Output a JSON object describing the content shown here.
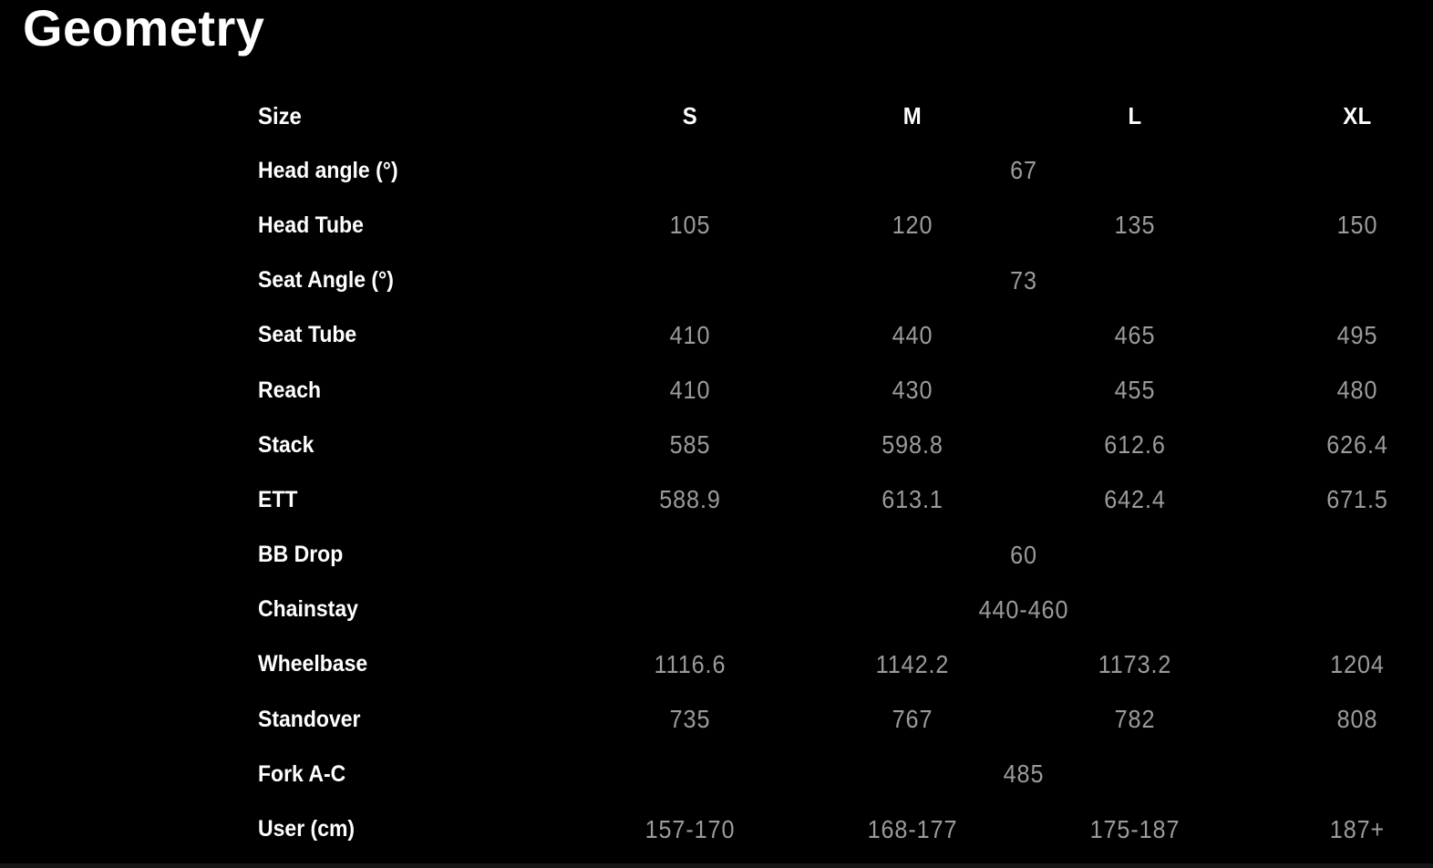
{
  "page": {
    "title": "Geometry"
  },
  "colors": {
    "background": "#000000",
    "label_color": "#ffffff",
    "value_color": "#9b9b9b"
  },
  "table": {
    "header": {
      "label": "Size",
      "columns": [
        "S",
        "M",
        "L",
        "XL"
      ]
    },
    "rows": [
      {
        "label": "Head angle (°)",
        "span": true,
        "value": "67"
      },
      {
        "label": "Head Tube",
        "span": false,
        "values": [
          "105",
          "120",
          "135",
          "150"
        ]
      },
      {
        "label": "Seat Angle (°)",
        "span": true,
        "value": "73"
      },
      {
        "label": "Seat Tube",
        "span": false,
        "values": [
          "410",
          "440",
          "465",
          "495"
        ]
      },
      {
        "label": "Reach",
        "span": false,
        "values": [
          "410",
          "430",
          "455",
          "480"
        ]
      },
      {
        "label": "Stack",
        "span": false,
        "values": [
          "585",
          "598.8",
          "612.6",
          "626.4"
        ]
      },
      {
        "label": "ETT",
        "span": false,
        "values": [
          "588.9",
          "613.1",
          "642.4",
          "671.5"
        ]
      },
      {
        "label": "BB Drop",
        "span": true,
        "value": "60"
      },
      {
        "label": "Chainstay",
        "span": true,
        "value": "440-460"
      },
      {
        "label": "Wheelbase",
        "span": false,
        "values": [
          "1116.6",
          "1142.2",
          "1173.2",
          "1204"
        ]
      },
      {
        "label": "Standover",
        "span": false,
        "values": [
          "735",
          "767",
          "782",
          "808"
        ]
      },
      {
        "label": "Fork A-C",
        "span": true,
        "value": "485"
      },
      {
        "label": "User (cm)",
        "span": false,
        "values": [
          "157-170",
          "168-177",
          "175-187",
          "187+"
        ]
      }
    ]
  }
}
